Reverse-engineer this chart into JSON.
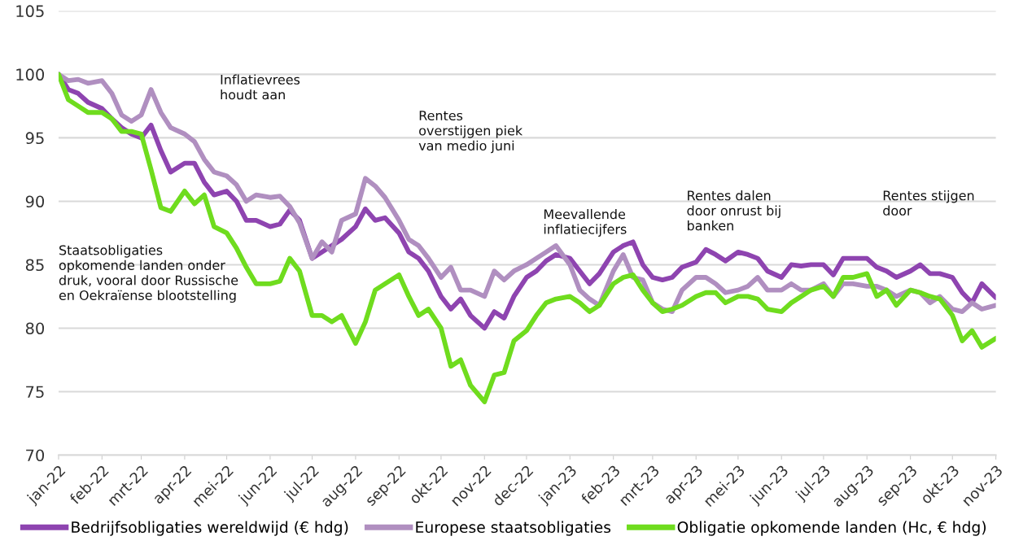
{
  "chart_data": {
    "type": "line",
    "x": [
      "2022-01-01",
      "2022-01-08",
      "2022-01-15",
      "2022-01-22",
      "2022-02-01",
      "2022-02-08",
      "2022-02-15",
      "2022-02-22",
      "2022-03-01",
      "2022-03-08",
      "2022-03-15",
      "2022-03-22",
      "2022-04-01",
      "2022-04-08",
      "2022-04-15",
      "2022-04-22",
      "2022-05-01",
      "2022-05-08",
      "2022-05-15",
      "2022-05-22",
      "2022-06-01",
      "2022-06-08",
      "2022-06-15",
      "2022-06-22",
      "2022-07-01",
      "2022-07-08",
      "2022-07-15",
      "2022-07-22",
      "2022-08-01",
      "2022-08-08",
      "2022-08-15",
      "2022-08-22",
      "2022-09-01",
      "2022-09-08",
      "2022-09-15",
      "2022-09-22",
      "2022-10-01",
      "2022-10-08",
      "2022-10-15",
      "2022-10-22",
      "2022-11-01",
      "2022-11-08",
      "2022-11-15",
      "2022-11-22",
      "2022-12-01",
      "2022-12-08",
      "2022-12-15",
      "2022-12-22",
      "2023-01-01",
      "2023-01-08",
      "2023-01-15",
      "2023-01-22",
      "2023-02-01",
      "2023-02-08",
      "2023-02-15",
      "2023-02-22",
      "2023-03-01",
      "2023-03-08",
      "2023-03-15",
      "2023-03-22",
      "2023-04-01",
      "2023-04-08",
      "2023-04-15",
      "2023-04-22",
      "2023-05-01",
      "2023-05-08",
      "2023-05-15",
      "2023-05-22",
      "2023-06-01",
      "2023-06-08",
      "2023-06-15",
      "2023-06-22",
      "2023-07-01",
      "2023-07-08",
      "2023-07-15",
      "2023-07-22",
      "2023-08-01",
      "2023-08-08",
      "2023-08-15",
      "2023-08-22",
      "2023-09-01",
      "2023-09-08",
      "2023-09-15",
      "2023-09-22",
      "2023-10-01",
      "2023-10-08",
      "2023-10-15",
      "2023-10-22",
      "2023-11-01"
    ],
    "series": [
      {
        "name": "Bedrijfsobligaties wereldwijd (€ hdg)",
        "color": "#8e44b0",
        "values": [
          100,
          98.8,
          98.5,
          97.8,
          97.3,
          96.5,
          95.8,
          95.3,
          95.0,
          96.0,
          94.0,
          92.3,
          93.0,
          93.0,
          91.5,
          90.5,
          90.8,
          90.0,
          88.5,
          88.5,
          88.0,
          88.2,
          89.3,
          88.5,
          85.5,
          86.0,
          86.5,
          87.0,
          88.0,
          89.4,
          88.5,
          88.7,
          87.5,
          86.0,
          85.5,
          84.5,
          82.5,
          81.5,
          82.3,
          81.0,
          80.0,
          81.3,
          80.8,
          82.5,
          84.0,
          84.5,
          85.3,
          85.8,
          85.5,
          84.5,
          83.5,
          84.3,
          86.0,
          86.5,
          86.8,
          85.0,
          84.0,
          83.8,
          84.0,
          84.8,
          85.2,
          86.2,
          85.8,
          85.3,
          86.0,
          85.8,
          85.5,
          84.5,
          84.0,
          85.0,
          84.9,
          85.0,
          85.0,
          84.2,
          85.5,
          85.5,
          85.5,
          84.8,
          84.5,
          84.0,
          84.5,
          85.0,
          84.3,
          84.3,
          84.0,
          82.8,
          82.0,
          83.5,
          82.4
        ]
      },
      {
        "name": "Europese staatsobligaties",
        "color": "#b08fc0",
        "values": [
          100,
          99.5,
          99.6,
          99.3,
          99.5,
          98.5,
          96.8,
          96.3,
          96.8,
          98.8,
          97.0,
          95.8,
          95.3,
          94.7,
          93.3,
          92.3,
          92.0,
          91.3,
          90.0,
          90.5,
          90.3,
          90.4,
          89.6,
          88.3,
          85.5,
          86.8,
          86.0,
          88.5,
          89.0,
          91.8,
          91.2,
          90.3,
          88.5,
          87.0,
          86.5,
          85.5,
          84.0,
          84.8,
          83.0,
          83.0,
          82.5,
          84.5,
          83.8,
          84.5,
          85.0,
          85.5,
          86.0,
          86.5,
          85.0,
          83.0,
          82.3,
          81.8,
          84.5,
          85.8,
          84.0,
          83.8,
          82.0,
          81.5,
          81.3,
          83.0,
          84.0,
          84.0,
          83.5,
          82.8,
          83.0,
          83.3,
          84.0,
          83.0,
          83.0,
          83.5,
          83.0,
          83.0,
          83.5,
          82.5,
          83.5,
          83.5,
          83.3,
          83.3,
          83.0,
          82.5,
          83.0,
          82.8,
          82.0,
          82.5,
          81.5,
          81.3,
          82.0,
          81.5,
          81.8
        ]
      },
      {
        "name": "Obligatie opkomende landen (Hc, € hdg)",
        "color": "#6fdc1e",
        "values": [
          100,
          98.0,
          97.5,
          97.0,
          97.0,
          96.5,
          95.5,
          95.5,
          95.3,
          92.5,
          89.5,
          89.2,
          90.8,
          89.8,
          90.5,
          88.0,
          87.5,
          86.3,
          84.8,
          83.5,
          83.5,
          83.7,
          85.5,
          84.5,
          81.0,
          81.0,
          80.5,
          81.0,
          78.8,
          80.5,
          83.0,
          83.5,
          84.2,
          82.5,
          81.0,
          81.5,
          80.0,
          77.0,
          77.5,
          75.5,
          74.2,
          76.3,
          76.5,
          79.0,
          79.8,
          81.0,
          82.0,
          82.3,
          82.5,
          82.0,
          81.3,
          81.8,
          83.5,
          84.0,
          84.2,
          83.0,
          82.0,
          81.3,
          81.5,
          81.8,
          82.5,
          82.8,
          82.8,
          82.0,
          82.5,
          82.5,
          82.3,
          81.5,
          81.3,
          82.0,
          82.5,
          83.0,
          83.3,
          82.5,
          84.0,
          84.0,
          84.3,
          82.5,
          83.0,
          81.8,
          83.0,
          82.8,
          82.5,
          82.3,
          81.0,
          79.0,
          79.8,
          78.5,
          79.2
        ]
      }
    ],
    "xlim": [
      "2022-01-01",
      "2023-11-01"
    ],
    "xticks": [
      {
        "value": "2022-01-01",
        "label": "jan-22"
      },
      {
        "value": "2022-02-01",
        "label": "feb-22"
      },
      {
        "value": "2022-03-01",
        "label": "mrt-22"
      },
      {
        "value": "2022-04-01",
        "label": "apr-22"
      },
      {
        "value": "2022-05-01",
        "label": "mei-22"
      },
      {
        "value": "2022-06-01",
        "label": "jun-22"
      },
      {
        "value": "2022-07-01",
        "label": "jul-22"
      },
      {
        "value": "2022-08-01",
        "label": "aug-22"
      },
      {
        "value": "2022-09-01",
        "label": "sep-22"
      },
      {
        "value": "2022-10-01",
        "label": "okt-22"
      },
      {
        "value": "2022-11-01",
        "label": "nov-22"
      },
      {
        "value": "2022-12-01",
        "label": "dec-22"
      },
      {
        "value": "2023-01-01",
        "label": "jan-23"
      },
      {
        "value": "2023-02-01",
        "label": "feb-23"
      },
      {
        "value": "2023-03-01",
        "label": "mrt-23"
      },
      {
        "value": "2023-04-01",
        "label": "apr-23"
      },
      {
        "value": "2023-05-01",
        "label": "mei-23"
      },
      {
        "value": "2023-06-01",
        "label": "jun-23"
      },
      {
        "value": "2023-07-01",
        "label": "jul-23"
      },
      {
        "value": "2023-08-01",
        "label": "aug-23"
      },
      {
        "value": "2023-09-01",
        "label": "sep-23"
      },
      {
        "value": "2023-10-01",
        "label": "okt-23"
      },
      {
        "value": "2023-11-01",
        "label": "nov-23"
      }
    ],
    "ylim": [
      70,
      105
    ],
    "yticks": [
      70,
      75,
      80,
      85,
      90,
      95,
      100,
      105
    ],
    "grid": "y",
    "legend": "bottom",
    "marker": "none",
    "line_style": "solid",
    "annotations": [
      "Inflatievrees\nhoudt aan",
      "Staatsobligaties\nopkomende landen onder\ndruk, vooral door Russische\nen Oekraïense blootstelling",
      "Rentes\noverstijgen piek\nvan medio juni",
      "Meevallende\ninflatiecijfers",
      "Rentes dalen\ndoor onrust bij\nbanken",
      "Rentes stijgen\ndoor"
    ]
  }
}
